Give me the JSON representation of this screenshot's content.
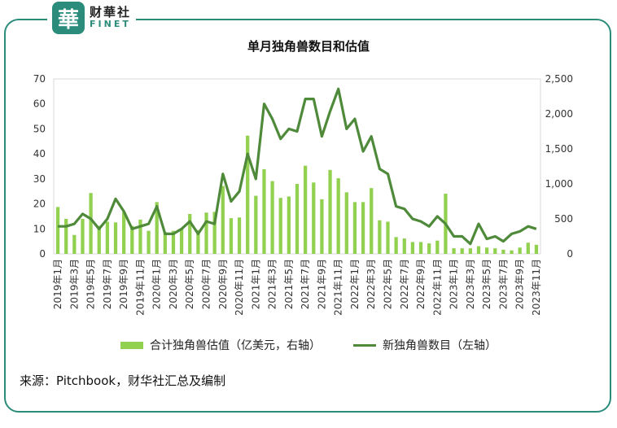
{
  "logo": {
    "mark": "華",
    "cn": "财華社",
    "en": "FINET"
  },
  "chart_data": {
    "type": "bar",
    "title": "单月独角兽数目和估值",
    "categories": [
      "2019年1月",
      "2019年2月",
      "2019年3月",
      "2019年4月",
      "2019年5月",
      "2019年6月",
      "2019年7月",
      "2019年8月",
      "2019年9月",
      "2019年10月",
      "2019年11月",
      "2019年12月",
      "2020年1月",
      "2020年2月",
      "2020年3月",
      "2020年4月",
      "2020年5月",
      "2020年6月",
      "2020年7月",
      "2020年8月",
      "2020年9月",
      "2020年10月",
      "2020年11月",
      "2020年12月",
      "2021年1月",
      "2021年2月",
      "2021年3月",
      "2021年4月",
      "2021年5月",
      "2021年6月",
      "2021年7月",
      "2021年8月",
      "2021年9月",
      "2021年10月",
      "2021年11月",
      "2021年12月",
      "2022年1月",
      "2022年2月",
      "2022年3月",
      "2022年4月",
      "2022年5月",
      "2022年6月",
      "2022年7月",
      "2022年8月",
      "2022年9月",
      "2022年10月",
      "2022年11月",
      "2022年12月",
      "2023年1月",
      "2023年2月",
      "2023年3月",
      "2023年4月",
      "2023年5月",
      "2023年6月",
      "2023年7月",
      "2023年8月",
      "2023年9月",
      "2023年10月",
      "2023年11月"
    ],
    "xticks_shown": [
      "2019年1月",
      "2019年3月",
      "2019年5月",
      "2019年7月",
      "2019年9月",
      "2019年11月",
      "2020年1月",
      "2020年3月",
      "2020年5月",
      "2020年7月",
      "2020年9月",
      "2020年11月",
      "2021年1月",
      "2021年3月",
      "2021年5月",
      "2021年7月",
      "2021年9月",
      "2021年11月",
      "2022年1月",
      "2022年3月",
      "2022年5月",
      "2022年7月",
      "2022年9月",
      "2022年11月",
      "2023年1月",
      "2023年3月",
      "2023年5月",
      "2023年7月",
      "2023年9月",
      "2023年11月"
    ],
    "series": [
      {
        "name": "合计独角兽估值（亿美元，右轴）",
        "type": "bar",
        "axis": "right",
        "color": "#92d050",
        "values": [
          670,
          500,
          270,
          500,
          870,
          400,
          460,
          450,
          600,
          400,
          490,
          330,
          740,
          310,
          330,
          360,
          570,
          340,
          590,
          600,
          970,
          510,
          520,
          1690,
          830,
          1210,
          1040,
          800,
          820,
          1000,
          1260,
          1020,
          780,
          1200,
          1080,
          880,
          740,
          740,
          940,
          480,
          460,
          240,
          220,
          170,
          170,
          150,
          190,
          860,
          80,
          80,
          80,
          110,
          90,
          80,
          60,
          50,
          90,
          160,
          130
        ]
      },
      {
        "name": "新独角兽数目（左轴）",
        "type": "line",
        "axis": "left",
        "color": "#4e8a3a",
        "values": [
          11,
          11,
          12,
          16,
          14,
          10,
          14,
          22,
          17,
          10,
          11,
          12,
          19,
          8,
          8,
          10,
          13,
          8,
          13,
          12,
          32,
          21,
          25,
          40,
          30,
          60,
          54,
          46,
          50,
          49,
          62,
          62,
          47,
          57,
          66,
          50,
          54,
          41,
          47,
          34,
          32,
          19,
          18,
          14,
          13,
          11,
          15,
          12,
          7,
          7,
          4,
          12,
          6,
          7,
          5,
          8,
          9,
          11,
          10
        ]
      }
    ],
    "ylim_left": [
      0,
      70
    ],
    "yticks_left": [
      "0",
      "10",
      "20",
      "30",
      "40",
      "50",
      "60",
      "70"
    ],
    "ylim_right": [
      0,
      2500
    ],
    "yticks_right": [
      "0",
      "500",
      "1,000",
      "1,500",
      "2,000",
      "2,500"
    ],
    "legend_position": "bottom",
    "grid": false
  },
  "legend": {
    "bar_label": "合计独角兽估值（亿美元，右轴）",
    "line_label": "新独角兽数目（左轴）"
  },
  "source": "来源：Pitchbook，财华社汇总及编制"
}
